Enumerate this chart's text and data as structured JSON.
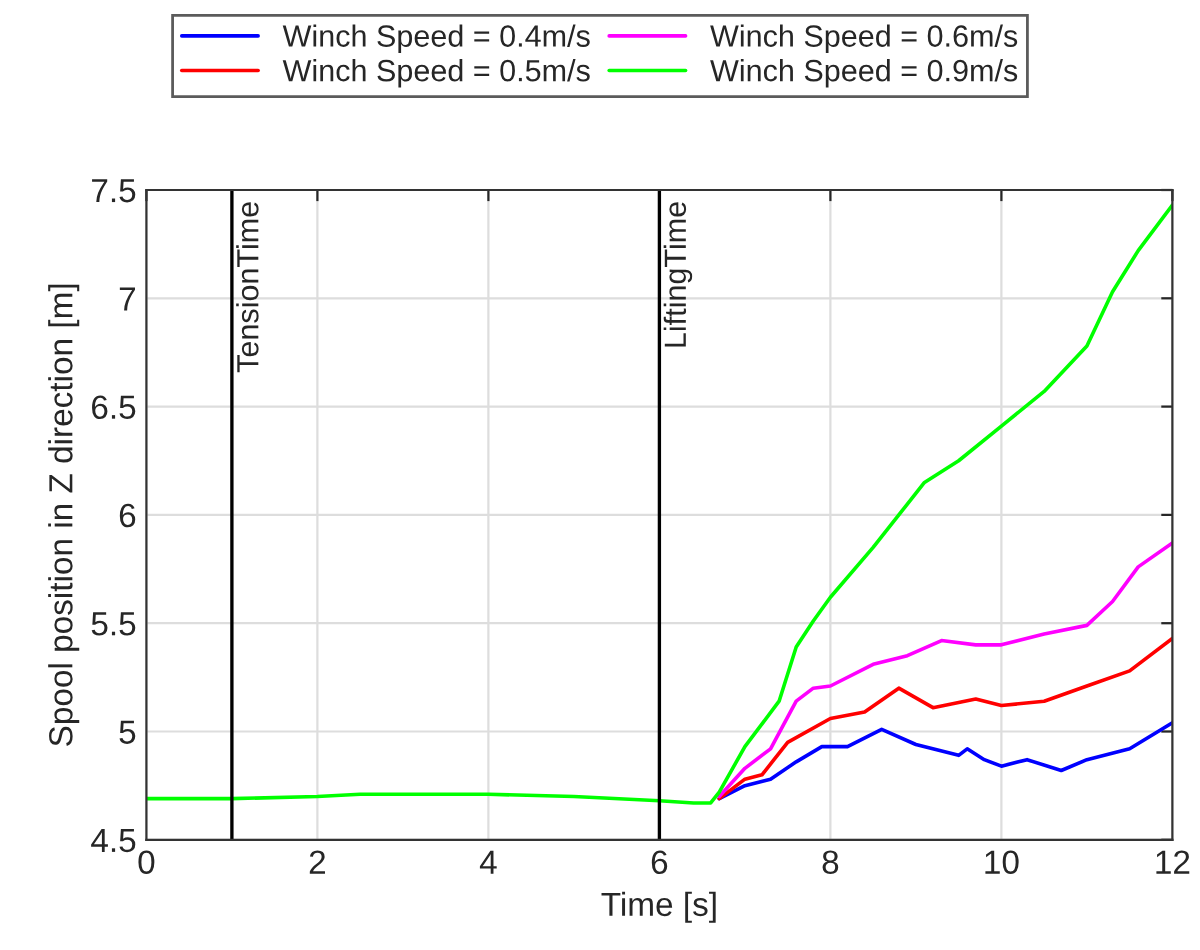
{
  "chart_data": {
    "type": "line",
    "xlabel": "Time [s]",
    "ylabel": "Spool position in Z direction [m]",
    "xlim": [
      0,
      12
    ],
    "ylim": [
      4.5,
      7.5
    ],
    "xticks": [
      0,
      2,
      4,
      6,
      8,
      10,
      12
    ],
    "yticks": [
      4.5,
      5,
      5.5,
      6,
      6.5,
      7,
      7.5
    ],
    "grid": true,
    "legend": "top",
    "line_style": "solid",
    "marker": "none",
    "ref_lines": [
      {
        "axis": "x",
        "value": 1,
        "label": "TensionTime",
        "color": "#000000"
      },
      {
        "axis": "x",
        "value": 6,
        "label": "LiftingTime",
        "color": "#000000"
      }
    ],
    "series": [
      {
        "name": "Winch Speed = 0.4m/s",
        "color": "#0000ff",
        "x": [
          6.7,
          7.0,
          7.3,
          7.6,
          7.9,
          8.2,
          8.6,
          9.0,
          9.5,
          9.6,
          9.8,
          10.0,
          10.3,
          10.7,
          11.0,
          11.5,
          12
        ],
        "values": [
          4.69,
          4.75,
          4.78,
          4.86,
          4.93,
          4.93,
          5.01,
          4.94,
          4.89,
          4.92,
          4.87,
          4.84,
          4.87,
          4.82,
          4.87,
          4.92,
          5.04
        ]
      },
      {
        "name": "Winch Speed = 0.5m/s",
        "color": "#ff0000",
        "x": [
          6.7,
          7.0,
          7.2,
          7.5,
          8.0,
          8.4,
          8.8,
          9.2,
          9.7,
          10.0,
          10.5,
          11.0,
          11.5,
          12
        ],
        "values": [
          4.69,
          4.78,
          4.8,
          4.95,
          5.06,
          5.09,
          5.2,
          5.11,
          5.15,
          5.12,
          5.14,
          5.21,
          5.28,
          5.43
        ]
      },
      {
        "name": "Winch Speed = 0.6m/s",
        "color": "#ff00ff",
        "x": [
          6.7,
          7.0,
          7.3,
          7.6,
          7.8,
          8.0,
          8.5,
          8.9,
          9.3,
          9.7,
          10.0,
          10.5,
          11.0,
          11.3,
          11.6,
          12
        ],
        "values": [
          4.7,
          4.83,
          4.92,
          5.14,
          5.2,
          5.21,
          5.31,
          5.35,
          5.42,
          5.4,
          5.4,
          5.45,
          5.49,
          5.6,
          5.76,
          5.87
        ]
      },
      {
        "name": "Winch Speed = 0.9m/s",
        "color": "#00ff00",
        "x": [
          0,
          1,
          2,
          2.5,
          4,
          5,
          6,
          6.4,
          6.6,
          6.7,
          7.0,
          7.4,
          7.6,
          7.8,
          8.0,
          8.5,
          8.9,
          9.1,
          9.5,
          10.0,
          10.5,
          11.0,
          11.3,
          11.6,
          12
        ],
        "values": [
          4.69,
          4.69,
          4.7,
          4.71,
          4.71,
          4.7,
          4.68,
          4.67,
          4.67,
          4.72,
          4.93,
          5.14,
          5.39,
          5.51,
          5.62,
          5.85,
          6.05,
          6.15,
          6.25,
          6.41,
          6.57,
          6.78,
          7.03,
          7.22,
          7.43
        ]
      }
    ]
  }
}
